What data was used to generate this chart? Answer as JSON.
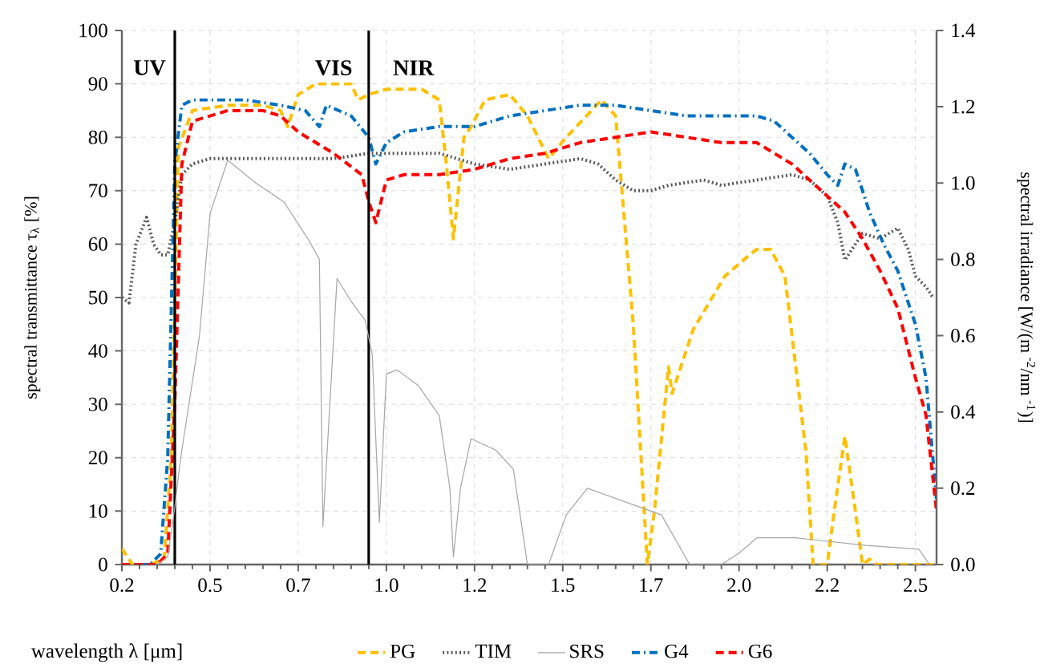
{
  "chart_data": {
    "type": "line",
    "xlabel": "wavelength λ [μm]",
    "ylabel": "spectral transmittance τ$_{λ}$ [%]",
    "y2label": "spectral irradiance [W/(m $^{-2}$/nm $^{-1}$)]",
    "xlim": [
      0.2,
      2.51
    ],
    "xticks": [
      0.2,
      {
        "value": 0.45,
        "label": "0.5"
      },
      0.7,
      {
        "value": 0.95,
        "label": "1.0"
      },
      1.2,
      {
        "value": 1.45,
        "label": "1.5"
      },
      1.7,
      {
        "value": 1.95,
        "label": "2.0"
      },
      2.2,
      {
        "value": 2.45,
        "label": "2.5"
      }
    ],
    "ylim": [
      0,
      100
    ],
    "yticks": [
      0,
      10,
      20,
      30,
      40,
      50,
      60,
      70,
      80,
      90,
      100
    ],
    "y2lim": [
      0,
      1.4
    ],
    "y2ticks": [
      {
        "value": 0,
        "label": "0.0"
      },
      0.2,
      0.4,
      0.6,
      0.8,
      {
        "value": 1,
        "label": "1.0"
      },
      1.2,
      1.4
    ],
    "grid": true,
    "legend": "bottom",
    "marker": "none",
    "ref_lines": [
      {
        "axis": "x",
        "value": 0.35,
        "color": "#000000"
      },
      {
        "axis": "x",
        "value": 0.9,
        "color": "#000000"
      }
    ],
    "annotations": [
      "UV",
      "VIS",
      "NIR"
    ],
    "series": [
      {
        "name": "PG",
        "color": "#ffc000",
        "line_style": "dashed",
        "x": [
          0.2,
          0.23,
          0.28,
          0.32,
          0.34,
          0.36,
          0.4,
          0.5,
          0.6,
          0.65,
          0.67,
          0.7,
          0.75,
          0.85,
          0.87,
          0.9,
          0.95,
          1.05,
          1.1,
          1.12,
          1.14,
          1.17,
          1.19,
          1.23,
          1.3,
          1.35,
          1.41,
          1.46,
          1.56,
          1.6,
          1.65,
          1.69,
          1.71,
          1.75,
          1.76,
          1.82,
          1.91,
          1.98,
          2.0,
          2.04,
          2.08,
          2.14,
          2.16,
          2.2,
          2.22,
          2.25,
          2.28,
          2.3,
          2.32,
          2.34,
          2.4,
          2.5
        ],
        "values": [
          3,
          0,
          0,
          1,
          20,
          78,
          85,
          86,
          86,
          85,
          82,
          88,
          90,
          90,
          87,
          88,
          89,
          89,
          87,
          75,
          61,
          80,
          82,
          87,
          88,
          84,
          76,
          80,
          87,
          84,
          45,
          0,
          10,
          37,
          32,
          44,
          54,
          58,
          59,
          59,
          54,
          21,
          0,
          0,
          10,
          24,
          10,
          0,
          1,
          0,
          0,
          0
        ]
      },
      {
        "name": "TIM",
        "color": "#595959",
        "line_style": "dotted",
        "x": [
          0.2,
          0.22,
          0.24,
          0.27,
          0.29,
          0.31,
          0.33,
          0.35,
          0.37,
          0.4,
          0.45,
          0.6,
          0.8,
          0.9,
          1.0,
          1.1,
          1.2,
          1.3,
          1.4,
          1.5,
          1.55,
          1.6,
          1.65,
          1.7,
          1.75,
          1.85,
          1.9,
          2.0,
          2.1,
          2.15,
          2.2,
          2.23,
          2.25,
          2.3,
          2.35,
          2.4,
          2.43,
          2.45,
          2.48,
          2.5
        ],
        "values": [
          50,
          49,
          60,
          65,
          60,
          58,
          58,
          64,
          73,
          75,
          76,
          76,
          76,
          77,
          77,
          77,
          75,
          74,
          75,
          76,
          75,
          72,
          70,
          70,
          71,
          72,
          71,
          72,
          73,
          72,
          69,
          64,
          57,
          62,
          61,
          63,
          59,
          54,
          52,
          50
        ]
      },
      {
        "name": "SRS",
        "color": "#a6a6a6",
        "line_style": "solid",
        "axis": "y2",
        "x": [
          0.3,
          0.33,
          0.35,
          0.36,
          0.37,
          0.39,
          0.42,
          0.45,
          0.5,
          0.58,
          0.66,
          0.73,
          0.76,
          0.77,
          0.81,
          0.85,
          0.89,
          0.91,
          0.93,
          0.95,
          0.98,
          1.04,
          1.1,
          1.13,
          1.14,
          1.16,
          1.19,
          1.26,
          1.31,
          1.35,
          1.41,
          1.46,
          1.52,
          1.64,
          1.73,
          1.81,
          1.9,
          1.95,
          2.0,
          2.11,
          2.31,
          2.46,
          2.49
        ],
        "values": [
          0,
          0.02,
          0.15,
          0.23,
          0.3,
          0.42,
          0.6,
          0.92,
          1.06,
          1,
          0.95,
          0.85,
          0.8,
          0.1,
          0.75,
          0.69,
          0.64,
          0.55,
          0.11,
          0.5,
          0.51,
          0.47,
          0.39,
          0.2,
          0.02,
          0.2,
          0.33,
          0.3,
          0.25,
          0,
          0,
          0.13,
          0.2,
          0.16,
          0.13,
          0,
          0,
          0.03,
          0.07,
          0.07,
          0.05,
          0.04,
          0
        ]
      },
      {
        "name": "G4",
        "color": "#0070c0",
        "line_style": "dashdot",
        "x": [
          0.2,
          0.28,
          0.31,
          0.33,
          0.35,
          0.37,
          0.4,
          0.45,
          0.55,
          0.65,
          0.72,
          0.76,
          0.78,
          0.85,
          0.9,
          0.92,
          0.95,
          1.0,
          1.1,
          1.2,
          1.3,
          1.4,
          1.5,
          1.6,
          1.7,
          1.8,
          1.9,
          2.0,
          2.05,
          2.1,
          2.15,
          2.2,
          2.23,
          2.25,
          2.28,
          2.32,
          2.36,
          2.4,
          2.45,
          2.48,
          2.51
        ],
        "values": [
          0,
          0,
          2,
          20,
          75,
          86,
          87,
          87,
          87,
          86,
          85,
          82,
          86,
          84,
          80,
          75,
          79,
          81,
          82,
          82,
          84,
          85,
          86,
          86,
          85,
          84,
          84,
          84,
          83,
          80,
          77,
          73,
          71,
          75,
          74,
          66,
          60,
          55,
          45,
          35,
          12
        ]
      },
      {
        "name": "G6",
        "color": "#ff0000",
        "line_style": "dashed",
        "x": [
          0.2,
          0.3,
          0.33,
          0.35,
          0.37,
          0.4,
          0.5,
          0.6,
          0.65,
          0.7,
          0.8,
          0.88,
          0.9,
          0.92,
          0.95,
          1.0,
          1.1,
          1.2,
          1.3,
          1.4,
          1.5,
          1.6,
          1.7,
          1.8,
          1.9,
          2.0,
          2.05,
          2.1,
          2.15,
          2.2,
          2.25,
          2.3,
          2.35,
          2.4,
          2.45,
          2.48,
          2.51
        ],
        "values": [
          0,
          0,
          2,
          30,
          75,
          83,
          85,
          85,
          84,
          81,
          77,
          73,
          68,
          64,
          72,
          73,
          73,
          74,
          76,
          77,
          79,
          80,
          81,
          80,
          79,
          79,
          77,
          75,
          72,
          69,
          66,
          61,
          55,
          48,
          35,
          28,
          10
        ]
      }
    ]
  }
}
